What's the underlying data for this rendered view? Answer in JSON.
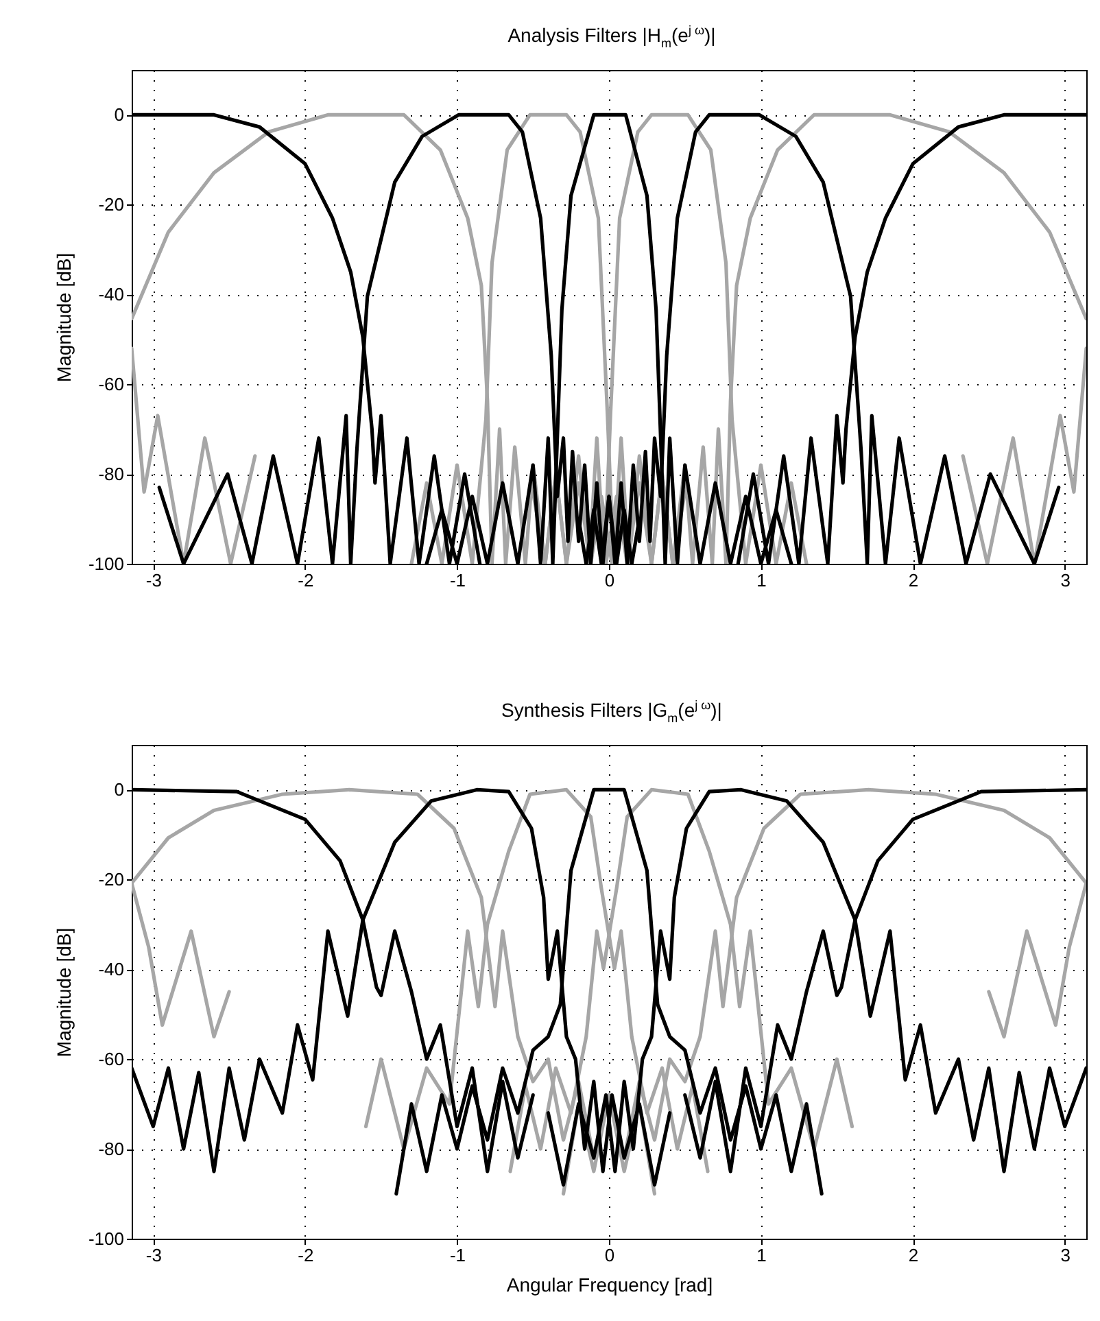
{
  "chart_data": [
    {
      "type": "line",
      "title": "Analysis Filters |H$_{m}$(e$^{j ω}$)|",
      "ylabel": "Magnitude [dB]",
      "xlim": [
        -3.1416,
        3.1416
      ],
      "ylim": [
        -100,
        10
      ],
      "xticks": [
        -3,
        -2,
        -1,
        0,
        1,
        2,
        3
      ],
      "yticks": [
        -100,
        -80,
        -60,
        -40,
        -20,
        0
      ],
      "grid": true,
      "series": [
        {
          "color": "#a6a6a6",
          "x": [
            -3.1416,
            -2.9,
            -2.6,
            -2.24,
            -1.85,
            -1.35,
            -1.11,
            -0.93,
            -0.84,
            -0.8,
            -0.77,
            -0.72,
            -0.68,
            -0.62,
            -0.55,
            -0.5,
            -0.42,
            -0.35,
            -0.28,
            -0.2,
            -0.12,
            -0.05,
            0.02,
            0.1,
            1.0,
            2.33,
            2.49,
            2.66,
            2.8,
            2.97,
            3.06,
            3.1416
          ],
          "values": [
            -45.4,
            -26.1,
            -12.9,
            -3.8,
            0,
            0,
            -7.8,
            -23,
            -38,
            -63.7,
            -100,
            -70,
            -100,
            -74,
            -100,
            -78,
            -100,
            -80,
            -100,
            -82,
            -100,
            -85,
            -100,
            -88,
            null,
            -76,
            -100,
            -72,
            -100,
            -67,
            -84,
            -52
          ]
        },
        {
          "color": "#a6a6a6",
          "x": [
            -3.1416,
            -3.06,
            -2.97,
            -2.8,
            -2.66,
            -2.49,
            -2.33,
            -1.0,
            -0.1,
            -0.02,
            0.05,
            0.12,
            0.2,
            0.28,
            0.35,
            0.42,
            0.5,
            0.55,
            0.62,
            0.68,
            0.72,
            0.77,
            0.8,
            0.84,
            0.93,
            1.11,
            1.35,
            1.85,
            2.24,
            2.6,
            2.9,
            3.1416
          ],
          "values": [
            -52,
            -84,
            -67,
            -100,
            -72,
            -100,
            -76,
            null,
            -88,
            -100,
            -85,
            -100,
            -82,
            -100,
            -80,
            -100,
            -78,
            -100,
            -74,
            -100,
            -70,
            -100,
            -63.7,
            -38,
            -23,
            -7.8,
            0,
            0,
            -3.8,
            -12.9,
            -26.1,
            -45.4
          ]
        },
        {
          "color": "#a6a6a6",
          "x": [
            -1.3,
            -1.2,
            -1.1,
            -1.0,
            -0.9,
            -0.81,
            -0.77,
            -0.67,
            -0.52,
            -0.28,
            -0.19,
            -0.07,
            -0.01,
            0.03,
            0.08,
            0.13,
            0.2,
            0.28,
            0.35,
            0.42,
            0.5
          ],
          "values": [
            -100,
            -82,
            -100,
            -78,
            -100,
            -67.8,
            -33,
            -7.8,
            0,
            0,
            -3.8,
            -23,
            -66.8,
            -100,
            -72,
            -100,
            -76,
            -100,
            -80,
            -100,
            -84
          ]
        },
        {
          "color": "#a6a6a6",
          "x": [
            -0.5,
            -0.42,
            -0.35,
            -0.28,
            -0.2,
            -0.13,
            -0.08,
            -0.03,
            0.01,
            0.07,
            0.19,
            0.28,
            0.52,
            0.67,
            0.77,
            0.81,
            0.9,
            1.0,
            1.1,
            1.2,
            1.3
          ],
          "values": [
            -84,
            -100,
            -80,
            -100,
            -76,
            -100,
            -72,
            -100,
            -66.8,
            -23,
            -3.8,
            0,
            0,
            -7.8,
            -33,
            -67.8,
            -100,
            -78,
            -100,
            -82,
            -100
          ]
        },
        {
          "color": "#000000",
          "x": [
            -3.1416,
            -2.6,
            -2.3,
            -2.0,
            -1.82,
            -1.7,
            -1.62,
            -1.56,
            -1.54,
            -1.5,
            -1.44,
            -1.33,
            -1.25,
            -1.15,
            -1.05,
            -0.95,
            -0.85,
            0,
            0.85,
            0.95,
            1.05,
            1.15,
            1.25,
            1.33,
            1.44,
            1.5,
            1.54,
            1.56,
            1.62,
            1.7,
            1.82,
            2.0,
            2.3,
            2.6,
            3.1416
          ],
          "values": [
            0,
            0,
            -2.7,
            -10.9,
            -23,
            -35,
            -49.5,
            -70,
            -82,
            -67,
            -100,
            -72,
            -100,
            -76,
            -100,
            -80,
            -100,
            null,
            -100,
            -80,
            -100,
            -76,
            -100,
            -72,
            -100,
            -67,
            -82,
            -70,
            -49.5,
            -35,
            -23,
            -10.9,
            -2.7,
            0,
            0
          ]
        },
        {
          "color": "#000000",
          "x": [
            -2.96,
            -2.8,
            -2.51,
            -2.35,
            -2.21,
            -2.05,
            -1.91,
            -1.82,
            -1.73,
            -1.7,
            -1.66,
            -1.59,
            -1.41,
            -1.23,
            -0.99,
            -0.66,
            -0.57,
            -0.45,
            -0.38,
            -0.34,
            -0.3,
            -0.27,
            -0.24,
            -0.2,
            -0.16,
            -0.12,
            -0.08,
            -0.04,
            0,
            0.05,
            0.1,
            0.15,
            0.2
          ],
          "values": [
            -83,
            -100,
            -80,
            -100,
            -76,
            -100,
            -72,
            -100,
            -67,
            -100,
            -75,
            -40.4,
            -15,
            -4.8,
            0,
            0,
            -3.8,
            -23,
            -53.6,
            -85,
            -72,
            -95,
            -75,
            -95,
            -78,
            -100,
            -82,
            -100,
            -85,
            -100,
            -88,
            -100,
            -90
          ]
        },
        {
          "color": "#000000",
          "x": [
            -1.2,
            -1.1,
            -1.0,
            -0.9,
            -0.8,
            -0.7,
            -0.6,
            -0.5,
            -0.45,
            -0.4,
            -0.37,
            -0.31,
            -0.25,
            -0.1,
            0.11,
            0.25,
            0.31,
            0.37,
            0.4,
            0.45,
            0.5,
            0.6,
            0.7,
            0.8,
            0.9,
            1.0,
            1.1,
            1.2
          ],
          "values": [
            -100,
            -88,
            -100,
            -85,
            -100,
            -82,
            -100,
            -78,
            -100,
            -72,
            -100,
            -43.4,
            -18,
            0,
            0,
            -18,
            -43.4,
            -100,
            -72,
            -100,
            -78,
            -100,
            -82,
            -100,
            -85,
            -100,
            -88,
            -100
          ]
        },
        {
          "color": "#000000",
          "x": [
            -0.2,
            -0.15,
            -0.1,
            -0.05,
            0,
            0.04,
            0.08,
            0.12,
            0.16,
            0.2,
            0.24,
            0.27,
            0.3,
            0.34,
            0.38,
            0.45,
            0.57,
            0.66,
            0.99,
            1.23,
            1.41,
            1.59,
            1.66,
            1.7,
            1.73,
            1.82,
            1.91,
            2.05,
            2.21,
            2.35,
            2.51,
            2.8,
            2.96
          ],
          "values": [
            -90,
            -100,
            -88,
            -100,
            -85,
            -100,
            -82,
            -100,
            -78,
            -95,
            -75,
            -95,
            -72,
            -85,
            -53.6,
            -23,
            -3.8,
            0,
            0,
            -4.8,
            -15,
            -40.4,
            -75,
            -100,
            -67,
            -100,
            -72,
            -100,
            -76,
            -100,
            -80,
            -100,
            -83
          ]
        }
      ]
    },
    {
      "type": "line",
      "title": "Synthesis Filters |G$_{m}$(e$^{j ω}$)|",
      "xlabel": "Angular Frequency [rad]",
      "ylabel": "Magnitude [dB]",
      "xlim": [
        -3.1416,
        3.1416
      ],
      "ylim": [
        -100,
        10
      ],
      "xticks": [
        -3,
        -2,
        -1,
        0,
        1,
        2,
        3
      ],
      "yticks": [
        -100,
        -80,
        -60,
        -40,
        -20,
        0
      ],
      "grid": true,
      "series": [
        {
          "color": "#a6a6a6",
          "x": [
            -3.1416,
            -2.9,
            -2.6,
            -2.15,
            -1.71,
            -1.26,
            -1.02,
            -0.84,
            -0.75,
            -0.7,
            -0.6,
            -0.5,
            -0.4,
            -0.3,
            -0.2,
            -0.1,
            0,
            0.1,
            0.2,
            0.3,
            1.0,
            2.5,
            2.6,
            2.75,
            2.94,
            3.03,
            3.1416
          ],
          "values": [
            -20.8,
            -10.7,
            -4.6,
            -1,
            0,
            -1,
            -8.6,
            -24,
            -48.3,
            -31.5,
            -55,
            -65,
            -60,
            -78,
            -65,
            -82,
            -68,
            -85,
            -70,
            -90,
            null,
            -45,
            -55,
            -31.5,
            -52.4,
            -35,
            -20.8
          ]
        },
        {
          "color": "#a6a6a6",
          "x": [
            -3.1416,
            -3.03,
            -2.94,
            -2.75,
            -2.6,
            -2.5,
            -1.0,
            -0.3,
            -0.2,
            -0.1,
            0,
            0.1,
            0.2,
            0.3,
            0.4,
            0.5,
            0.6,
            0.7,
            0.75,
            0.84,
            1.02,
            1.26,
            1.71,
            2.15,
            2.6,
            2.9,
            3.1416
          ],
          "values": [
            -20.8,
            -35,
            -52.4,
            -31.5,
            -55,
            -45,
            null,
            -90,
            -70,
            -85,
            -68,
            -82,
            -65,
            -78,
            -60,
            -65,
            -55,
            -31.5,
            -48.3,
            -24,
            -8.6,
            -1,
            0,
            -1,
            -4.6,
            -10.7,
            -20.8
          ]
        },
        {
          "color": "#a6a6a6",
          "x": [
            -1.6,
            -1.5,
            -1.35,
            -1.2,
            -1.05,
            -0.93,
            -0.86,
            -0.8,
            -0.66,
            -0.52,
            -0.28,
            -0.12,
            -0.05,
            0.036,
            0.08,
            0.15,
            0.25,
            0.35,
            0.45,
            0.55,
            0.65
          ],
          "values": [
            -75,
            -60,
            -80,
            -62,
            -70,
            -31.5,
            -48.3,
            -30,
            -13.7,
            -1,
            0,
            -6,
            -22,
            -39.8,
            -31.5,
            -55,
            -72,
            -62,
            -80,
            -66,
            -85
          ]
        },
        {
          "color": "#a6a6a6",
          "x": [
            -0.65,
            -0.55,
            -0.45,
            -0.35,
            -0.25,
            -0.15,
            -0.08,
            -0.036,
            0.05,
            0.12,
            0.28,
            0.52,
            0.66,
            0.8,
            0.86,
            0.93,
            1.05,
            1.2,
            1.35,
            1.5,
            1.6
          ],
          "values": [
            -85,
            -66,
            -80,
            -62,
            -72,
            -55,
            -31.5,
            -39.8,
            -22,
            -6,
            0,
            -1,
            -13.7,
            -30,
            -48.3,
            -31.5,
            -70,
            -62,
            -80,
            -60,
            -75
          ]
        },
        {
          "color": "#000000",
          "x": [
            -3.1416,
            -2.45,
            -2.0,
            -1.77,
            -1.62,
            -1.53,
            -1.5,
            -1.41,
            -1.3,
            -1.2,
            -1.11,
            -1.0,
            -0.9,
            -0.8,
            -0.7,
            -0.6,
            -0.5,
            0,
            0.5,
            0.6,
            0.7,
            0.8,
            0.9,
            1.0,
            1.11,
            1.2,
            1.3,
            1.41,
            1.5,
            1.53,
            1.62,
            1.77,
            2.0,
            2.45,
            3.1416
          ],
          "values": [
            0,
            -0.4,
            -6.6,
            -15.8,
            -29,
            -44,
            -45.8,
            -31.5,
            -45,
            -60,
            -52.4,
            -75,
            -62,
            -85,
            -65,
            -82,
            -68,
            null,
            -68,
            -82,
            -65,
            -85,
            -62,
            -75,
            -52.4,
            -60,
            -45,
            -31.5,
            -45.8,
            -44,
            -29,
            -15.8,
            -6.6,
            -0.4,
            0
          ]
        },
        {
          "color": "#000000",
          "x": [
            -3.1416,
            -3.0,
            -2.9,
            -2.8,
            -2.7,
            -2.6,
            -2.5,
            -2.4,
            -2.3,
            -2.15,
            -2.05,
            -1.95,
            -1.85,
            -1.72,
            -1.62,
            -1.41,
            -1.17,
            -0.87,
            -0.66,
            -0.51,
            -0.43,
            -0.4,
            -0.34,
            -0.28,
            -0.22,
            -0.16,
            -0.1,
            -0.04,
            0.02,
            0.1,
            0.2,
            0.3,
            0.4
          ],
          "values": [
            -62,
            -75,
            -62,
            -80,
            -63,
            -85,
            -62,
            -78,
            -60,
            -72,
            -52.4,
            -64.6,
            -31.5,
            -50.4,
            -29,
            -11.7,
            -2.5,
            0,
            -0.4,
            -8.6,
            -24,
            -42.2,
            -31.5,
            -55,
            -60,
            -80,
            -65,
            -85,
            -68,
            -82,
            -70,
            -88,
            -72
          ]
        },
        {
          "color": "#000000",
          "x": [
            -1.4,
            -1.3,
            -1.2,
            -1.1,
            -1.0,
            -0.9,
            -0.8,
            -0.7,
            -0.6,
            -0.5,
            -0.4,
            -0.32,
            -0.25,
            -0.1,
            0.1,
            0.25,
            0.32,
            0.4,
            0.5,
            0.6,
            0.7,
            0.8,
            0.9,
            1.0,
            1.1,
            1.2,
            1.3,
            1.4
          ],
          "values": [
            -90,
            -70,
            -85,
            -68,
            -80,
            -66,
            -78,
            -62,
            -72,
            -58,
            -55,
            -47.8,
            -18,
            0,
            0,
            -18,
            -47.8,
            -55,
            -58,
            -72,
            -62,
            -78,
            -66,
            -80,
            -68,
            -85,
            -70,
            -90
          ]
        },
        {
          "color": "#000000",
          "x": [
            -0.4,
            -0.3,
            -0.2,
            -0.1,
            -0.02,
            0.04,
            0.1,
            0.16,
            0.22,
            0.28,
            0.34,
            0.4,
            0.43,
            0.51,
            0.66,
            0.87,
            1.17,
            1.41,
            1.62,
            1.72,
            1.85,
            1.95,
            2.05,
            2.15,
            2.3,
            2.4,
            2.5,
            2.6,
            2.7,
            2.8,
            2.9,
            3.0,
            3.1416
          ],
          "values": [
            -72,
            -88,
            -70,
            -82,
            -68,
            -85,
            -65,
            -80,
            -60,
            -55,
            -31.5,
            -42.2,
            -24,
            -8.6,
            -0.4,
            0,
            -2.5,
            -11.7,
            -29,
            -50.4,
            -31.5,
            -64.6,
            -52.4,
            -72,
            -60,
            -78,
            -62,
            -85,
            -63,
            -80,
            -62,
            -75,
            -62
          ]
        }
      ]
    }
  ]
}
